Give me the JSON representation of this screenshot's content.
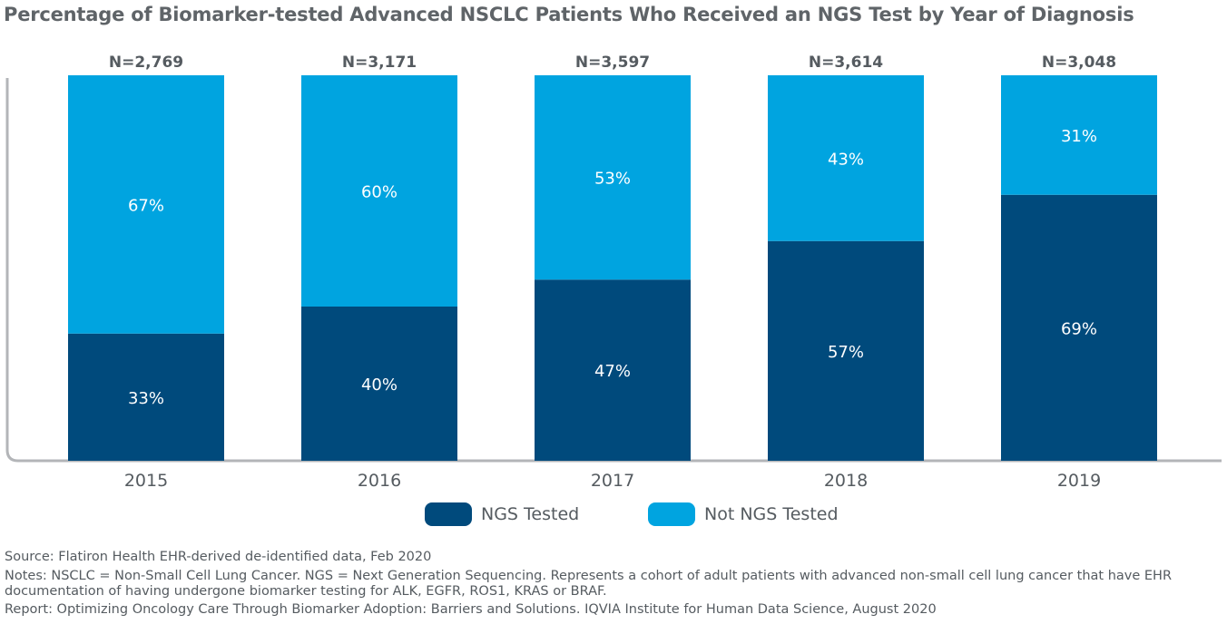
{
  "chart_data": {
    "type": "bar",
    "stacked": true,
    "title": "Percentage of Biomarker-tested Advanced NSCLC Patients Who Received an NGS Test by Year of Diagnosis",
    "categories": [
      "2015",
      "2016",
      "2017",
      "2018",
      "2019"
    ],
    "sample_sizes": [
      "N=2,769",
      "N=3,171",
      "N=3,597",
      "N=3,614",
      "N=3,048"
    ],
    "series": [
      {
        "name": "NGS Tested",
        "values": [
          33,
          40,
          47,
          57,
          69
        ],
        "labels": [
          "33%",
          "40%",
          "47%",
          "57%",
          "69%"
        ],
        "color": "#004a7c"
      },
      {
        "name": "Not NGS Tested",
        "values": [
          67,
          60,
          53,
          43,
          31
        ],
        "labels": [
          "67%",
          "60%",
          "53%",
          "43%",
          "31%"
        ],
        "color": "#00a4e0"
      }
    ],
    "ylim": [
      0,
      100
    ],
    "xlabel": "",
    "ylabel": "",
    "grid": false,
    "legend": "bottom-center"
  },
  "footnotes": {
    "source": "Source: Flatiron Health EHR-derived de-identified data, Feb 2020",
    "notes": "Notes: NSCLC = Non-Small Cell Lung Cancer. NGS = Next Generation Sequencing. Represents a cohort of adult patients with advanced non-small cell lung cancer that have EHR documentation of having undergone biomarker testing for ALK, EGFR, ROS1, KRAS or BRAF.",
    "report": "Report: Optimizing Oncology Care Through Biomarker Adoption: Barriers and Solutions. IQVIA Institute for Human Data Science, August 2020"
  },
  "colors": {
    "axis": "#b3b5b8",
    "label_on_bar": "#ffffff",
    "text": "#555b60"
  }
}
